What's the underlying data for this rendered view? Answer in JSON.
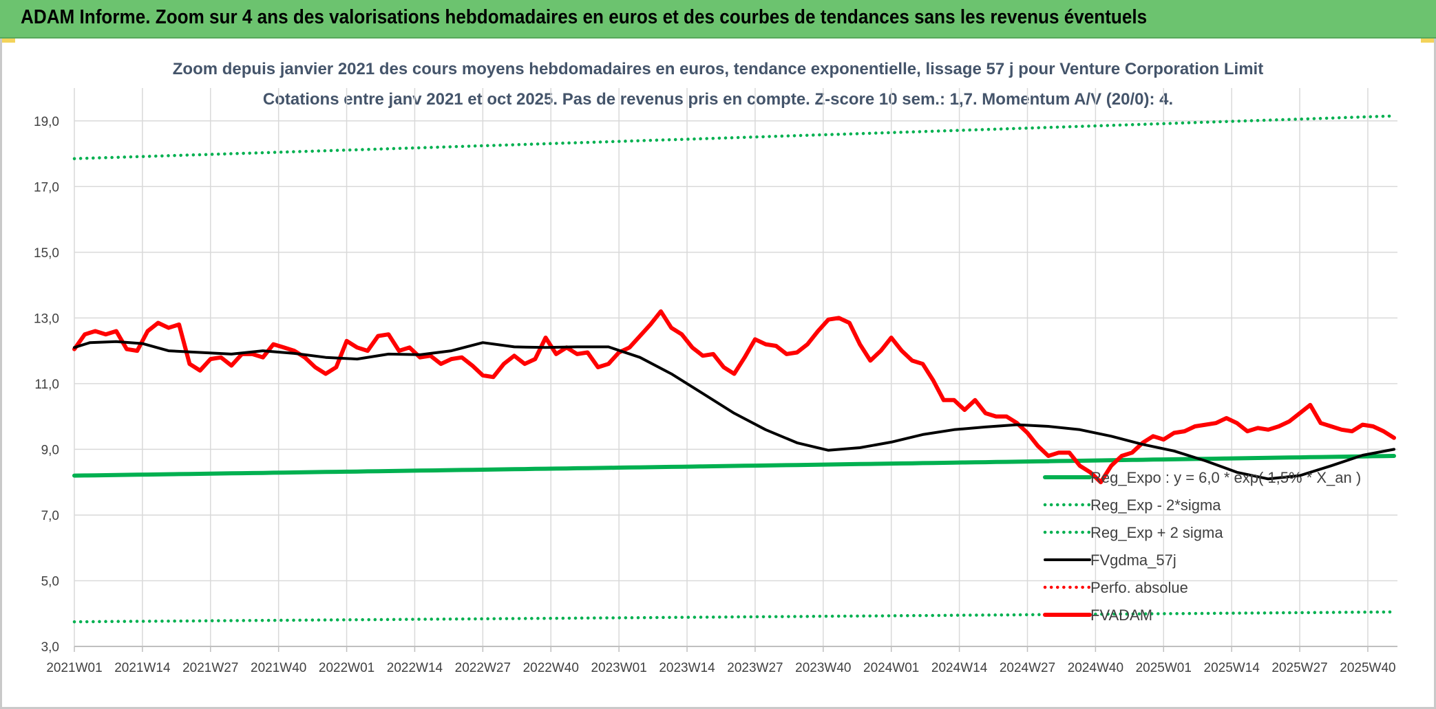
{
  "header": {
    "title": "ADAM Informe. Zoom sur 4 ans des valorisations hebdomadaires en euros et des courbes de tendances sans les revenus éventuels"
  },
  "colors": {
    "banner": "#6cc36f",
    "reg_green": "#00b050",
    "red": "#ff0000",
    "black": "#000000",
    "grid": "#d9d9d9"
  },
  "chart_data": {
    "type": "line",
    "title": "Zoom depuis janvier 2021 des cours moyens hebdomadaires en euros, tendance exponentielle, lissage 57 j pour Venture Corporation Limit",
    "subtitle": "Cotations entre janv 2021 et oct 2025. Pas de revenus pris en compte. Z-score 10 sem.: 1,7. Momentum A/V (20/0): 4.",
    "xlabel": "",
    "ylabel": "",
    "ylim": [
      3,
      20
    ],
    "yticks": [
      "3,0",
      "5,0",
      "7,0",
      "9,0",
      "11,0",
      "13,0",
      "15,0",
      "17,0",
      "19,0"
    ],
    "x_tick_labels": [
      "2021W01",
      "2021W14",
      "2021W27",
      "2021W40",
      "2022W01",
      "2022W14",
      "2022W27",
      "2022W40",
      "2023W01",
      "2023W14",
      "2023W27",
      "2023W40",
      "2024W01",
      "2024W14",
      "2024W27",
      "2024W40",
      "2025W01",
      "2025W14",
      "2025W27",
      "2025W40"
    ],
    "series": [
      {
        "name": "Reg_Expo : y = 6,0 * exp( 1,5% * X_an )",
        "style": "solid-thick",
        "color": "#00b050",
        "start": 8.2,
        "end": 8.8
      },
      {
        "name": "Reg_Exp - 2*sigma",
        "style": "dotted",
        "color": "#00b050",
        "start": 3.75,
        "end": 4.05
      },
      {
        "name": "Reg_Exp + 2 sigma",
        "style": "dotted",
        "color": "#00b050",
        "start": 17.85,
        "end": 19.15
      },
      {
        "name": "FVgdma_57j",
        "style": "solid",
        "color": "#000000",
        "keypoints": [
          [
            0,
            12.1
          ],
          [
            3,
            12.25
          ],
          [
            8,
            12.28
          ],
          [
            13,
            12.22
          ],
          [
            18,
            12.0
          ],
          [
            24,
            11.95
          ],
          [
            30,
            11.9
          ],
          [
            36,
            12.0
          ],
          [
            42,
            11.92
          ],
          [
            48,
            11.8
          ],
          [
            54,
            11.75
          ],
          [
            60,
            11.9
          ],
          [
            66,
            11.88
          ],
          [
            72,
            12.0
          ],
          [
            78,
            12.25
          ],
          [
            84,
            12.12
          ],
          [
            90,
            12.1
          ],
          [
            96,
            12.12
          ],
          [
            102,
            12.12
          ],
          [
            108,
            11.8
          ],
          [
            114,
            11.3
          ],
          [
            120,
            10.7
          ],
          [
            126,
            10.1
          ],
          [
            132,
            9.6
          ],
          [
            138,
            9.2
          ],
          [
            144,
            8.97
          ],
          [
            150,
            9.05
          ],
          [
            156,
            9.22
          ],
          [
            162,
            9.45
          ],
          [
            168,
            9.6
          ],
          [
            174,
            9.68
          ],
          [
            180,
            9.75
          ],
          [
            186,
            9.7
          ],
          [
            192,
            9.6
          ],
          [
            198,
            9.4
          ],
          [
            204,
            9.15
          ],
          [
            210,
            8.95
          ],
          [
            216,
            8.65
          ],
          [
            222,
            8.3
          ],
          [
            228,
            8.1
          ],
          [
            234,
            8.2
          ],
          [
            240,
            8.5
          ],
          [
            246,
            8.82
          ],
          [
            252,
            9.0
          ]
        ]
      },
      {
        "name": "Perfo. absolue",
        "style": "dotted",
        "color": "#ff0000",
        "values": []
      },
      {
        "name": "FVADAM",
        "style": "solid-thick",
        "color": "#ff0000",
        "keypoints": [
          [
            0,
            12.05
          ],
          [
            2,
            12.5
          ],
          [
            4,
            12.6
          ],
          [
            6,
            12.5
          ],
          [
            8,
            12.6
          ],
          [
            10,
            12.05
          ],
          [
            12,
            12.0
          ],
          [
            14,
            12.6
          ],
          [
            16,
            12.85
          ],
          [
            18,
            12.7
          ],
          [
            20,
            12.8
          ],
          [
            22,
            11.6
          ],
          [
            24,
            11.4
          ],
          [
            26,
            11.75
          ],
          [
            28,
            11.8
          ],
          [
            30,
            11.55
          ],
          [
            32,
            11.9
          ],
          [
            34,
            11.9
          ],
          [
            36,
            11.8
          ],
          [
            38,
            12.2
          ],
          [
            40,
            12.1
          ],
          [
            42,
            12.0
          ],
          [
            44,
            11.8
          ],
          [
            46,
            11.5
          ],
          [
            48,
            11.3
          ],
          [
            50,
            11.5
          ],
          [
            52,
            12.3
          ],
          [
            54,
            12.1
          ],
          [
            56,
            12.0
          ],
          [
            58,
            12.45
          ],
          [
            60,
            12.5
          ],
          [
            62,
            12.0
          ],
          [
            64,
            12.1
          ],
          [
            66,
            11.8
          ],
          [
            68,
            11.85
          ],
          [
            70,
            11.6
          ],
          [
            72,
            11.75
          ],
          [
            74,
            11.8
          ],
          [
            76,
            11.55
          ],
          [
            78,
            11.25
          ],
          [
            80,
            11.2
          ],
          [
            82,
            11.6
          ],
          [
            84,
            11.85
          ],
          [
            86,
            11.6
          ],
          [
            88,
            11.75
          ],
          [
            90,
            12.4
          ],
          [
            92,
            11.9
          ],
          [
            94,
            12.1
          ],
          [
            96,
            11.9
          ],
          [
            98,
            11.95
          ],
          [
            100,
            11.5
          ],
          [
            102,
            11.6
          ],
          [
            104,
            11.95
          ],
          [
            106,
            12.1
          ],
          [
            108,
            12.45
          ],
          [
            110,
            12.8
          ],
          [
            112,
            13.2
          ],
          [
            114,
            12.7
          ],
          [
            116,
            12.5
          ],
          [
            118,
            12.1
          ],
          [
            120,
            11.85
          ],
          [
            122,
            11.9
          ],
          [
            124,
            11.5
          ],
          [
            126,
            11.3
          ],
          [
            128,
            11.8
          ],
          [
            130,
            12.35
          ],
          [
            132,
            12.2
          ],
          [
            134,
            12.15
          ],
          [
            136,
            11.9
          ],
          [
            138,
            11.95
          ],
          [
            140,
            12.2
          ],
          [
            142,
            12.6
          ],
          [
            144,
            12.95
          ],
          [
            146,
            13.0
          ],
          [
            148,
            12.85
          ],
          [
            150,
            12.2
          ],
          [
            152,
            11.7
          ],
          [
            154,
            12.0
          ],
          [
            156,
            12.4
          ],
          [
            158,
            12.0
          ],
          [
            160,
            11.7
          ],
          [
            162,
            11.6
          ],
          [
            164,
            11.1
          ],
          [
            166,
            10.5
          ],
          [
            168,
            10.5
          ],
          [
            170,
            10.2
          ],
          [
            172,
            10.5
          ],
          [
            174,
            10.1
          ],
          [
            176,
            10.0
          ],
          [
            178,
            10.0
          ],
          [
            180,
            9.8
          ],
          [
            182,
            9.5
          ],
          [
            184,
            9.1
          ],
          [
            186,
            8.8
          ],
          [
            188,
            8.9
          ],
          [
            190,
            8.9
          ],
          [
            192,
            8.5
          ],
          [
            194,
            8.3
          ],
          [
            196,
            8.0
          ],
          [
            198,
            8.5
          ],
          [
            200,
            8.8
          ],
          [
            202,
            8.9
          ],
          [
            204,
            9.2
          ],
          [
            206,
            9.4
          ],
          [
            208,
            9.3
          ],
          [
            210,
            9.5
          ],
          [
            212,
            9.55
          ],
          [
            214,
            9.7
          ],
          [
            216,
            9.75
          ],
          [
            218,
            9.8
          ],
          [
            220,
            9.95
          ],
          [
            222,
            9.8
          ],
          [
            224,
            9.55
          ],
          [
            226,
            9.65
          ],
          [
            228,
            9.6
          ],
          [
            230,
            9.7
          ],
          [
            232,
            9.85
          ],
          [
            234,
            10.1
          ],
          [
            236,
            10.35
          ],
          [
            238,
            9.8
          ],
          [
            240,
            9.7
          ],
          [
            242,
            9.6
          ],
          [
            244,
            9.55
          ],
          [
            246,
            9.75
          ],
          [
            248,
            9.7
          ],
          [
            250,
            9.55
          ],
          [
            252,
            9.35
          ]
        ]
      }
    ],
    "legend_position": "bottom-right"
  }
}
